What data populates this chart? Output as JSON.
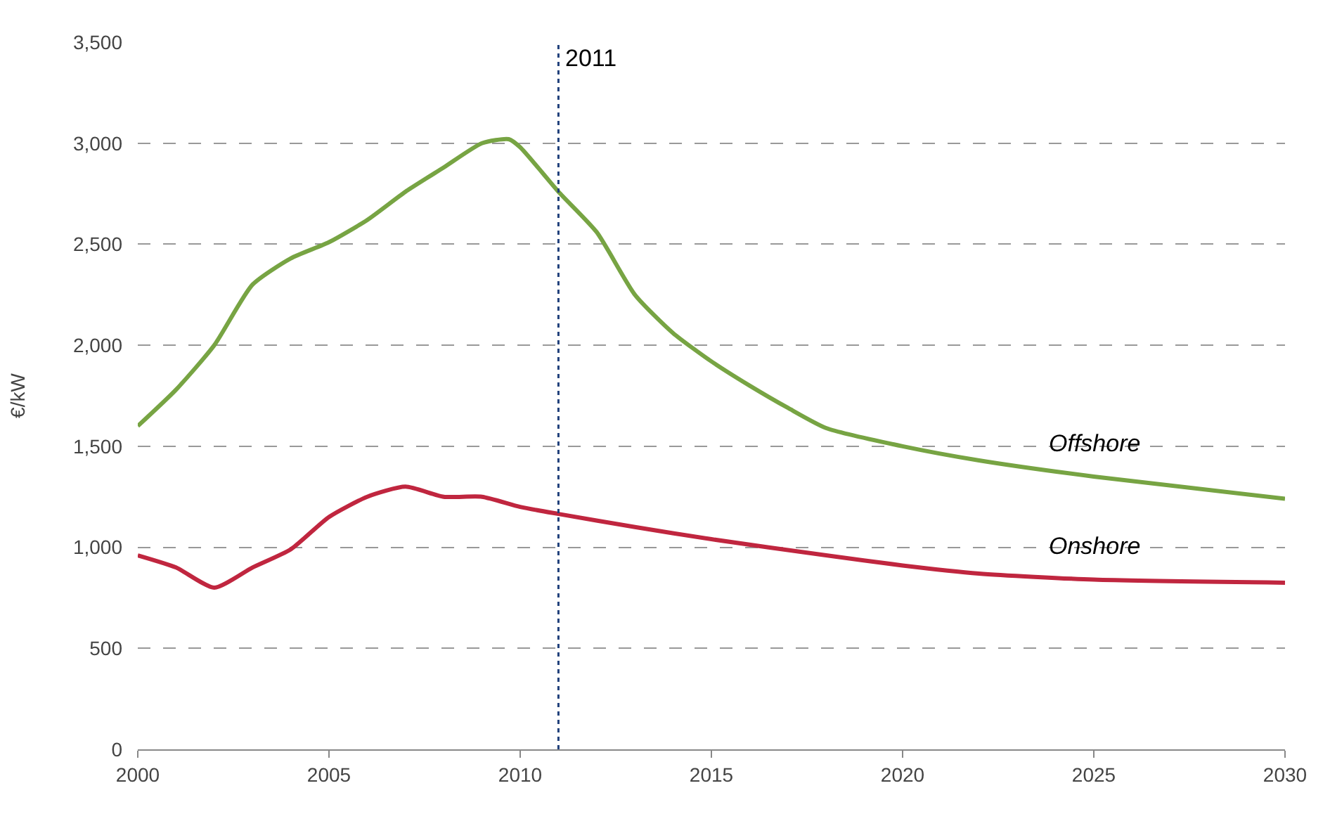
{
  "chart_data": {
    "type": "line",
    "ylabel": "€/kW",
    "xlim": [
      2000,
      2030
    ],
    "xticks": [
      2000,
      2005,
      2010,
      2015,
      2020,
      2025,
      2030
    ],
    "ylim": [
      0,
      3500
    ],
    "yticks": [
      {
        "value": 0,
        "label": "0"
      },
      {
        "value": 500,
        "label": "500"
      },
      {
        "value": 1000,
        "label": "1,000"
      },
      {
        "value": 1500,
        "label": "1,500"
      },
      {
        "value": 2000,
        "label": "2,000"
      },
      {
        "value": 2500,
        "label": "2,500"
      },
      {
        "value": 3000,
        "label": "3,000"
      },
      {
        "value": 3500,
        "label": "3,500"
      }
    ],
    "grid": "y",
    "legend": false,
    "line_style": "solid",
    "marker": "none",
    "series": [
      {
        "name": "Offshore",
        "color": "#77a443",
        "x": [
          2000,
          2001,
          2002,
          2003,
          2004,
          2005,
          2006,
          2007,
          2008,
          2009,
          2009.7,
          2010,
          2011,
          2012,
          2013,
          2014,
          2015,
          2016,
          2017,
          2018,
          2020,
          2022,
          2025,
          2030
        ],
        "values": [
          1600,
          1780,
          2000,
          2300,
          2430,
          2510,
          2620,
          2760,
          2880,
          3000,
          3020,
          2980,
          2760,
          2560,
          2250,
          2060,
          1920,
          1800,
          1690,
          1590,
          1500,
          1430,
          1350,
          1240
        ]
      },
      {
        "name": "Onshore",
        "color": "#c0263f",
        "x": [
          2000,
          2001,
          2002,
          2003,
          2004,
          2005,
          2006,
          2007,
          2008,
          2009,
          2010,
          2011,
          2013,
          2015,
          2018,
          2020,
          2022,
          2025,
          2030
        ],
        "values": [
          960,
          900,
          800,
          900,
          990,
          1150,
          1250,
          1300,
          1250,
          1250,
          1200,
          1165,
          1100,
          1040,
          960,
          910,
          870,
          840,
          825
        ]
      }
    ],
    "ref_lines": [
      {
        "axis": "x",
        "value": 2011,
        "label": "2011",
        "color": "#1f3f7a",
        "line_style": "dotted"
      }
    ]
  }
}
